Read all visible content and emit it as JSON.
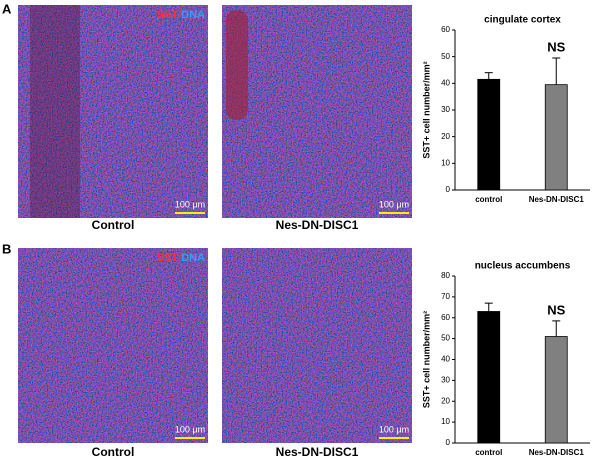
{
  "panels": [
    {
      "label": "A",
      "images": [
        {
          "caption": "Control",
          "stain": {
            "sst": "SST",
            "separator": "/",
            "dna": "DNA"
          },
          "scale_bar": "100 μm"
        },
        {
          "caption": "Nes-DN-DISC1",
          "scale_bar": "100 μm"
        }
      ]
    },
    {
      "label": "B",
      "images": [
        {
          "caption": "Control",
          "stain": {
            "sst": "SST",
            "separator": "/",
            "dna": "DNA"
          },
          "scale_bar": "100 μm"
        },
        {
          "caption": "Nes-DN-DISC1",
          "scale_bar": "100 μm"
        }
      ]
    }
  ],
  "chart_data": [
    {
      "type": "bar",
      "title": "cingulate cortex",
      "y_label": "SST+ cell number/mm²",
      "categories": [
        "control",
        "Nes-DN-DISC1"
      ],
      "values": [
        41.5,
        39.5
      ],
      "errors": [
        2.5,
        10
      ],
      "colors": [
        "#000000",
        "#808080"
      ],
      "annotation": "NS",
      "ylim": [
        0,
        60
      ],
      "yticks": [
        0,
        10,
        20,
        30,
        40,
        50,
        60
      ]
    },
    {
      "type": "bar",
      "title": "nucleus accumbens",
      "y_label": "SST+ cell number/mm²",
      "categories": [
        "control",
        "Nes-DN-DISC1"
      ],
      "values": [
        63,
        51
      ],
      "errors": [
        4,
        7.5
      ],
      "colors": [
        "#000000",
        "#808080"
      ],
      "annotation": "NS",
      "ylim": [
        0,
        80
      ],
      "yticks": [
        0,
        10,
        20,
        30,
        40,
        50,
        60,
        70,
        80
      ]
    }
  ]
}
